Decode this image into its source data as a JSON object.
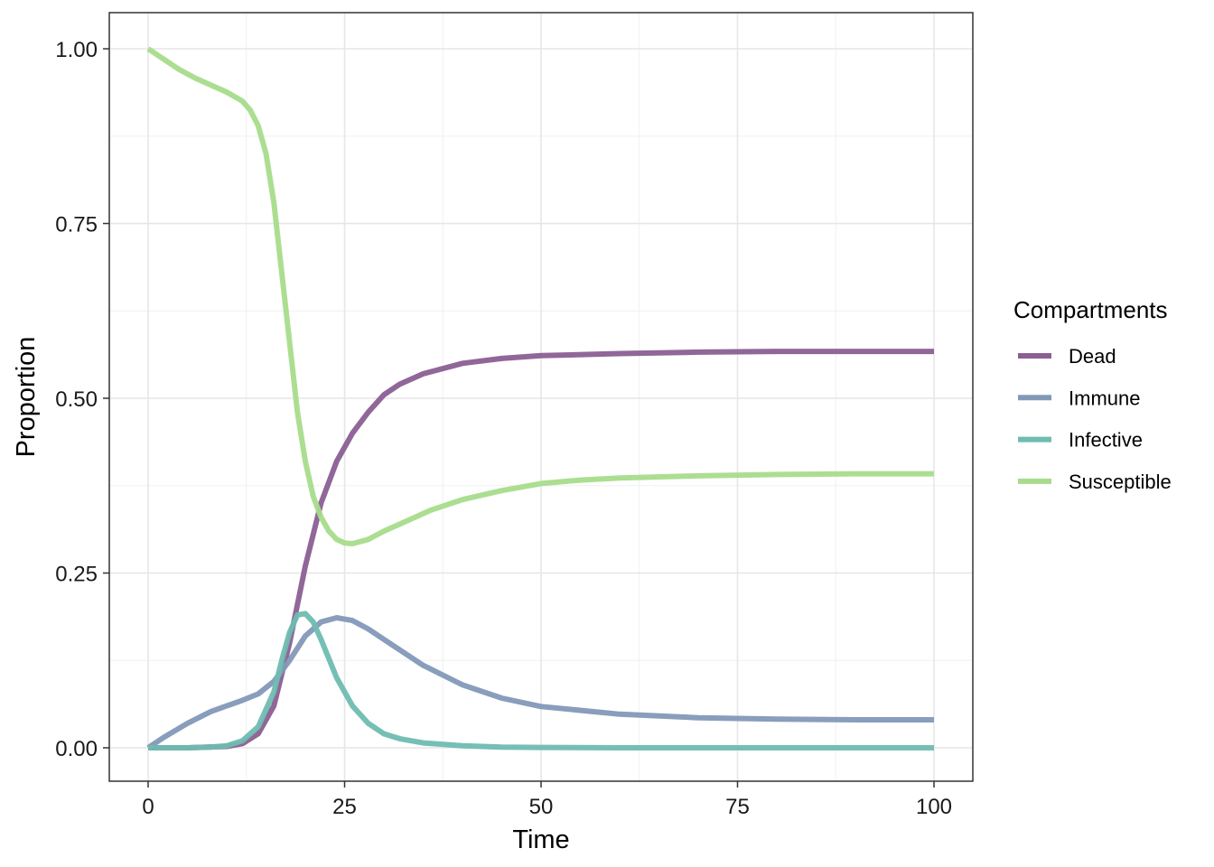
{
  "chart_data": {
    "type": "line",
    "title": "",
    "xlabel": "Time",
    "ylabel": "Proportion",
    "xlim": [
      0,
      100
    ],
    "ylim": [
      0,
      1
    ],
    "x_ticks": [
      "0",
      "25",
      "50",
      "75",
      "100"
    ],
    "y_ticks": [
      "0.00",
      "0.25",
      "0.50",
      "0.75",
      "1.00"
    ],
    "grid": true,
    "legend": {
      "title": "Compartments",
      "position": "right",
      "entries": [
        "Dead",
        "Immune",
        "Infective",
        "Susceptible"
      ]
    },
    "series": [
      {
        "name": "Dead",
        "color": "#8a5f92",
        "x": [
          0,
          5,
          10,
          12,
          14,
          16,
          18,
          20,
          22,
          24,
          26,
          28,
          30,
          32,
          35,
          40,
          45,
          50,
          60,
          70,
          80,
          90,
          100
        ],
        "y": [
          0,
          0,
          0.002,
          0.006,
          0.02,
          0.06,
          0.15,
          0.26,
          0.35,
          0.41,
          0.45,
          0.48,
          0.505,
          0.52,
          0.535,
          0.55,
          0.557,
          0.561,
          0.564,
          0.566,
          0.567,
          0.567,
          0.567
        ]
      },
      {
        "name": "Immune",
        "color": "#8398b8",
        "x": [
          0,
          2,
          5,
          8,
          10,
          12,
          14,
          16,
          18,
          20,
          22,
          24,
          26,
          28,
          30,
          35,
          40,
          45,
          50,
          60,
          70,
          80,
          90,
          100
        ],
        "y": [
          0,
          0.015,
          0.035,
          0.052,
          0.06,
          0.068,
          0.077,
          0.095,
          0.125,
          0.16,
          0.18,
          0.186,
          0.182,
          0.17,
          0.155,
          0.118,
          0.09,
          0.071,
          0.059,
          0.048,
          0.043,
          0.041,
          0.04,
          0.04
        ]
      },
      {
        "name": "Infective",
        "color": "#6fbcb0",
        "x": [
          0,
          5,
          8,
          10,
          12,
          14,
          16,
          17,
          18,
          19,
          20,
          21,
          22,
          24,
          26,
          28,
          30,
          32,
          35,
          40,
          45,
          50,
          60,
          70,
          80,
          90,
          100
        ],
        "y": [
          0,
          0,
          0.001,
          0.003,
          0.01,
          0.03,
          0.08,
          0.125,
          0.165,
          0.19,
          0.192,
          0.18,
          0.155,
          0.1,
          0.06,
          0.035,
          0.02,
          0.013,
          0.007,
          0.003,
          0.001,
          0.0005,
          0,
          0,
          0,
          0,
          0
        ]
      },
      {
        "name": "Susceptible",
        "color": "#a8dc8c",
        "x": [
          0,
          2,
          4,
          6,
          8,
          10,
          12,
          13,
          14,
          15,
          16,
          17,
          18,
          19,
          20,
          21,
          22,
          23,
          24,
          25,
          26,
          28,
          30,
          33,
          36,
          40,
          45,
          50,
          55,
          60,
          70,
          80,
          90,
          100
        ],
        "y": [
          1,
          0.985,
          0.97,
          0.958,
          0.948,
          0.938,
          0.925,
          0.912,
          0.89,
          0.85,
          0.78,
          0.68,
          0.58,
          0.48,
          0.41,
          0.36,
          0.33,
          0.31,
          0.298,
          0.293,
          0.292,
          0.298,
          0.31,
          0.325,
          0.34,
          0.355,
          0.368,
          0.378,
          0.383,
          0.386,
          0.389,
          0.391,
          0.392,
          0.392
        ]
      }
    ]
  }
}
